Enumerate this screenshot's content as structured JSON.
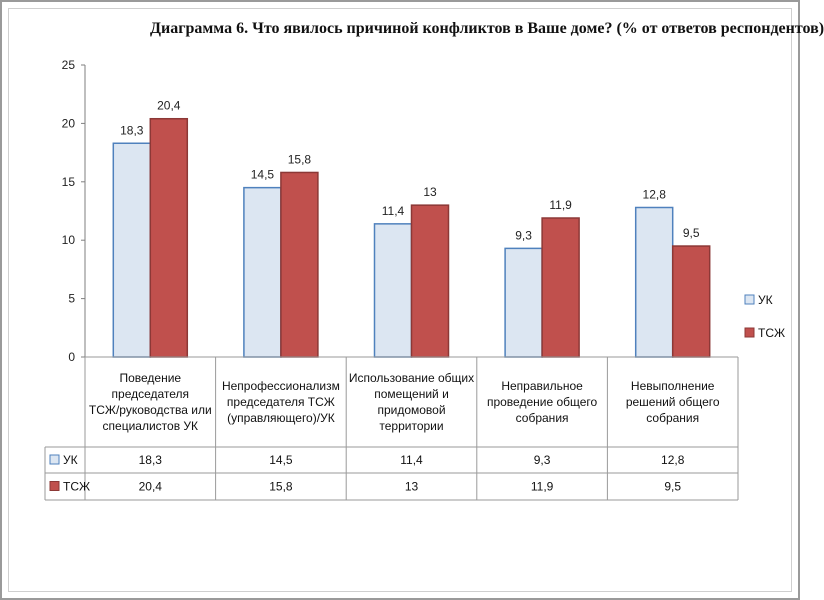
{
  "chart_data": {
    "type": "bar",
    "title": "Диаграмма 6. Что явилось причиной конфликтов в Ваше доме? (% от ответов респондентов)",
    "categories": [
      [
        "Поведение",
        "председателя",
        "ТСЖ/руководства или",
        "специалистов УК"
      ],
      [
        "Непрофессионализм",
        "председателя ТСЖ",
        "(управляющего)/УК"
      ],
      [
        "Использование общих",
        "помещений и",
        "придомовой",
        "территории"
      ],
      [
        "Неправильное",
        "проведение общего",
        "собрания"
      ],
      [
        "Невыполнение",
        "решений общего",
        "собрания"
      ]
    ],
    "series": [
      {
        "name": "УК",
        "values": [
          18.3,
          14.5,
          11.4,
          9.3,
          12.8
        ],
        "labels": [
          "18,3",
          "14,5",
          "11,4",
          "9,3",
          "12,8"
        ],
        "color": "#dce6f2",
        "stroke": "#4f81bd"
      },
      {
        "name": "ТСЖ",
        "values": [
          20.4,
          15.8,
          13,
          11.9,
          9.5
        ],
        "labels": [
          "20,4",
          "15,8",
          "13",
          "11,9",
          "9,5"
        ],
        "color": "#c0504d",
        "stroke": "#8c3836"
      }
    ],
    "yticks": [
      "0",
      "5",
      "10",
      "15",
      "20",
      "25"
    ],
    "ylim": [
      0,
      25
    ],
    "legend_position": "right",
    "data_table": true
  }
}
